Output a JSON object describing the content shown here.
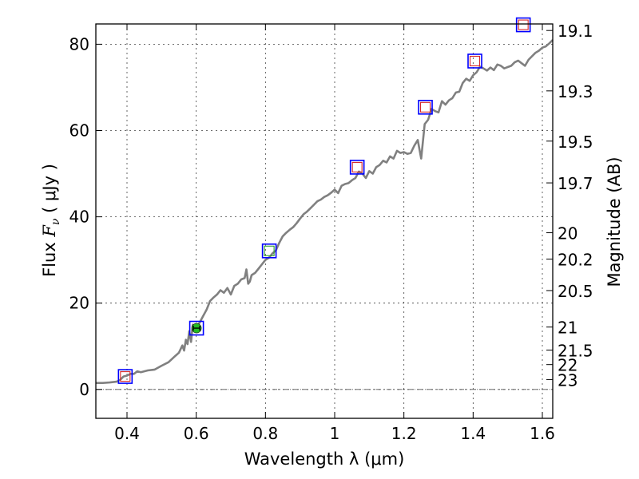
{
  "chart_data": {
    "type": "line",
    "title": "",
    "xlabel": "Wavelength  λ (μm)",
    "ylabel": "Flux  F_ν  ( μJy )",
    "ylabel_parts": {
      "prefix": "Flux ",
      "symbol": "F",
      "subscript": "ν",
      "unit": " ( μJy )"
    },
    "y2label": "Magnitude (AB)",
    "xlim": [
      0.31,
      1.63
    ],
    "ylim": [
      -6.7,
      84.7
    ],
    "grid": true,
    "xticks": [
      {
        "value": 0.4,
        "label": "0.4"
      },
      {
        "value": 0.6,
        "label": "0.6"
      },
      {
        "value": 0.8,
        "label": "0.8"
      },
      {
        "value": 1.0,
        "label": "1"
      },
      {
        "value": 1.2,
        "label": "1.2"
      },
      {
        "value": 1.4,
        "label": "1.4"
      },
      {
        "value": 1.6,
        "label": "1.6"
      }
    ],
    "yticks": [
      {
        "value": 0,
        "label": "0"
      },
      {
        "value": 20,
        "label": "20"
      },
      {
        "value": 40,
        "label": "40"
      },
      {
        "value": 60,
        "label": "60"
      },
      {
        "value": 80,
        "label": "80"
      }
    ],
    "y2ticks": [
      {
        "mag": 19.1,
        "label": "19.1"
      },
      {
        "mag": 19.3,
        "label": "19.3"
      },
      {
        "mag": 19.5,
        "label": "19.5"
      },
      {
        "mag": 19.7,
        "label": "19.7"
      },
      {
        "mag": 20.0,
        "label": "20"
      },
      {
        "mag": 20.2,
        "label": "20.2"
      },
      {
        "mag": 20.5,
        "label": "20.5"
      },
      {
        "mag": 21.0,
        "label": "21"
      },
      {
        "mag": 21.5,
        "label": "21.5"
      },
      {
        "mag": 22.0,
        "label": "22"
      },
      {
        "mag": 23.0,
        "label": "23"
      }
    ],
    "series": [
      {
        "name": "spectrum",
        "kind": "line",
        "color": "#808080",
        "x": [
          0.31,
          0.33,
          0.35,
          0.37,
          0.38,
          0.39,
          0.4,
          0.41,
          0.42,
          0.43,
          0.44,
          0.46,
          0.48,
          0.5,
          0.52,
          0.54,
          0.55,
          0.56,
          0.565,
          0.57,
          0.575,
          0.58,
          0.585,
          0.59,
          0.6,
          0.61,
          0.62,
          0.63,
          0.64,
          0.65,
          0.66,
          0.67,
          0.68,
          0.69,
          0.7,
          0.71,
          0.72,
          0.73,
          0.74,
          0.745,
          0.75,
          0.755,
          0.76,
          0.77,
          0.78,
          0.79,
          0.8,
          0.81,
          0.82,
          0.83,
          0.84,
          0.85,
          0.86,
          0.87,
          0.88,
          0.89,
          0.9,
          0.91,
          0.92,
          0.93,
          0.94,
          0.95,
          0.96,
          0.97,
          0.98,
          0.99,
          1.0,
          1.01,
          1.02,
          1.03,
          1.04,
          1.05,
          1.06,
          1.07,
          1.08,
          1.09,
          1.1,
          1.11,
          1.12,
          1.13,
          1.14,
          1.15,
          1.16,
          1.17,
          1.18,
          1.19,
          1.2,
          1.21,
          1.22,
          1.23,
          1.24,
          1.25,
          1.26,
          1.27,
          1.28,
          1.29,
          1.3,
          1.31,
          1.32,
          1.33,
          1.34,
          1.35,
          1.36,
          1.37,
          1.38,
          1.39,
          1.4,
          1.41,
          1.42,
          1.43,
          1.44,
          1.45,
          1.46,
          1.47,
          1.48,
          1.49,
          1.5,
          1.51,
          1.52,
          1.53,
          1.54,
          1.55,
          1.56,
          1.57,
          1.58,
          1.59,
          1.6,
          1.61,
          1.62,
          1.63
        ],
        "y": [
          1.5,
          1.5,
          1.6,
          1.8,
          2.2,
          3.0,
          3.2,
          3.6,
          3.6,
          4.2,
          4.0,
          4.4,
          4.6,
          5.5,
          6.3,
          7.8,
          8.5,
          10.2,
          9.0,
          11.5,
          10.5,
          13.5,
          11.0,
          15.0,
          14.2,
          15.5,
          17.0,
          18.5,
          20.5,
          21.3,
          22.0,
          23.0,
          22.4,
          23.5,
          22.0,
          24.0,
          24.5,
          25.5,
          25.8,
          27.8,
          24.5,
          25.0,
          26.5,
          27.0,
          28.0,
          29.0,
          30.0,
          30.5,
          31.5,
          32.2,
          34.0,
          35.5,
          36.3,
          37.0,
          37.6,
          38.5,
          39.6,
          40.6,
          41.2,
          42.0,
          42.8,
          43.6,
          44.0,
          44.6,
          45.0,
          45.6,
          46.3,
          45.5,
          47.2,
          47.6,
          47.8,
          48.5,
          49.0,
          50.5,
          50.0,
          49.0,
          50.6,
          50.0,
          51.5,
          52.0,
          53.0,
          52.6,
          54.0,
          53.5,
          55.3,
          54.8,
          55.0,
          54.6,
          54.8,
          56.5,
          57.8,
          53.5,
          61.5,
          62.5,
          65.0,
          64.5,
          64.2,
          66.8,
          66.0,
          67.0,
          67.5,
          68.8,
          69.0,
          71.0,
          72.0,
          71.5,
          72.8,
          73.5,
          74.8,
          74.4,
          73.9,
          74.6,
          74.0,
          75.3,
          75.0,
          74.4,
          74.7,
          75.0,
          75.8,
          76.2,
          75.6,
          75.0,
          76.4,
          77.2,
          78.0,
          78.5,
          79.2,
          79.5,
          80.2,
          81.0
        ]
      },
      {
        "name": "blue squares",
        "kind": "marker-square",
        "color": "#0000ff",
        "x": [
          0.395,
          0.601,
          0.811,
          1.065,
          1.262,
          1.405,
          1.545
        ],
        "y": [
          3.0,
          14.2,
          32.1,
          51.5,
          65.4,
          76.1,
          84.5
        ]
      },
      {
        "name": "red squares",
        "kind": "marker-square",
        "color": "#d62728",
        "x": [
          0.395,
          1.065,
          1.262,
          1.405,
          1.545
        ],
        "y": [
          3.0,
          51.5,
          65.4,
          76.1,
          84.5
        ]
      },
      {
        "name": "green square",
        "kind": "marker-square",
        "color": "#2ca02c",
        "x": [
          0.811
        ],
        "y": [
          32.1
        ]
      },
      {
        "name": "green point",
        "kind": "marker-circle",
        "color": "#22bb22",
        "x": [
          0.601
        ],
        "y": [
          14.2
        ]
      }
    ]
  }
}
